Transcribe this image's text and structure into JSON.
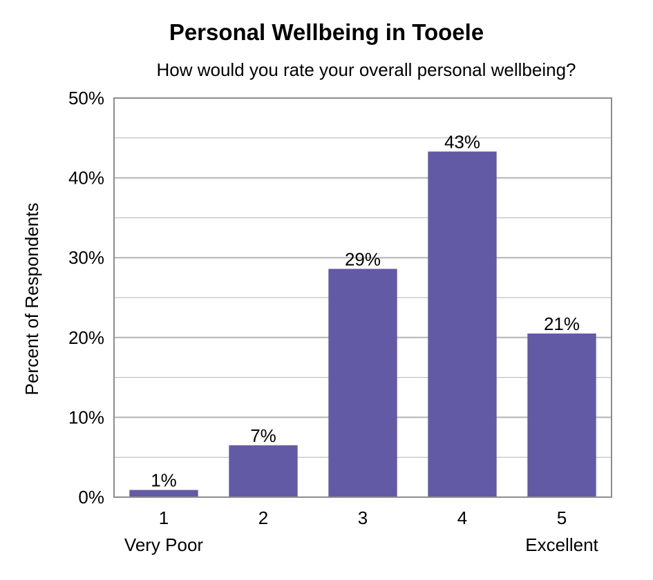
{
  "chart_data": {
    "type": "bar",
    "title": "Personal Wellbeing in Tooele",
    "subtitle": "How would you rate your overall personal wellbeing?",
    "ylabel": "Percent of Respondents",
    "xlabel": "",
    "categories": [
      "1",
      "2",
      "3",
      "4",
      "5"
    ],
    "category_sublabels": [
      "Very Poor",
      "",
      "",
      "",
      "Excellent"
    ],
    "values": [
      1,
      7,
      29,
      43,
      21
    ],
    "plotted_values": [
      0.9,
      6.5,
      28.6,
      43.3,
      20.5
    ],
    "data_labels": [
      "1%",
      "7%",
      "29%",
      "43%",
      "21%"
    ],
    "ylim": [
      0,
      50
    ],
    "yticks": [
      0,
      10,
      20,
      30,
      40,
      50
    ],
    "ytick_labels": [
      "0%",
      "10%",
      "20%",
      "30%",
      "40%",
      "50%"
    ],
    "grid": true,
    "legend": "none",
    "colors": {
      "bar": "#635aa6",
      "grid": "#b3b3b3",
      "axis": "#8c8c8c"
    }
  }
}
